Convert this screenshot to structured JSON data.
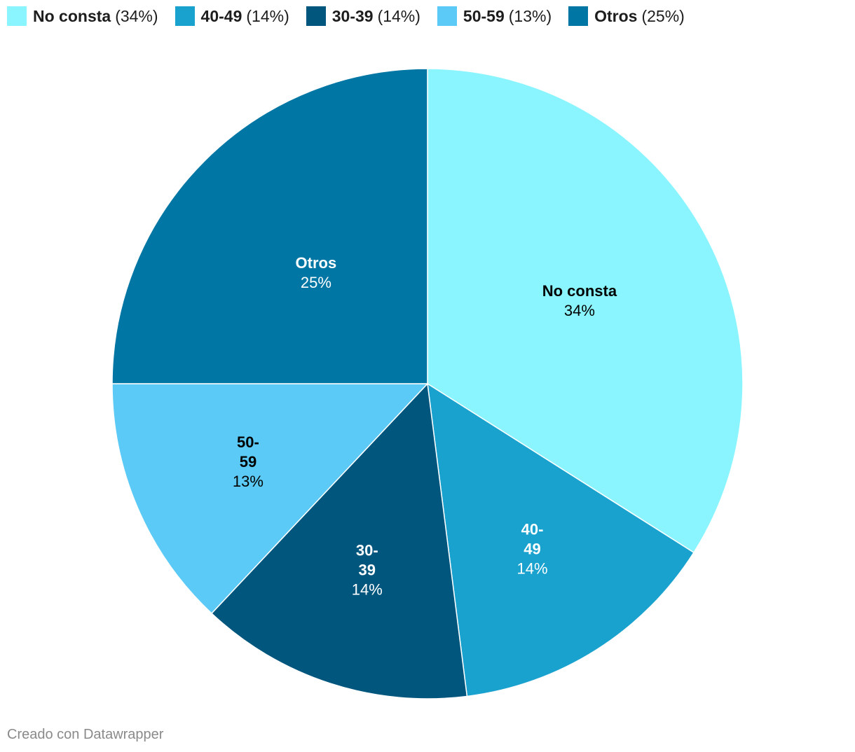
{
  "chart_data": {
    "type": "pie",
    "slices": [
      {
        "label": "No consta",
        "label_lines": [
          "No consta"
        ],
        "value": 34,
        "value_text": "34%",
        "legend_value": "(34%)",
        "color": "#8bf5ff",
        "label_color": "#000000"
      },
      {
        "label": "40-49",
        "label_lines": [
          "40-",
          "49"
        ],
        "value": 14,
        "value_text": "14%",
        "legend_value": "(14%)",
        "color": "#1aa2cf",
        "label_color": "#ffffff"
      },
      {
        "label": "30-39",
        "label_lines": [
          "30-",
          "39"
        ],
        "value": 14,
        "value_text": "14%",
        "legend_value": "(14%)",
        "color": "#00567d",
        "label_color": "#ffffff"
      },
      {
        "label": "50-59",
        "label_lines": [
          "50-",
          "59"
        ],
        "value": 13,
        "value_text": "13%",
        "legend_value": "(13%)",
        "color": "#5bcaf6",
        "label_color": "#000000"
      },
      {
        "label": "Otros",
        "label_lines": [
          "Otros"
        ],
        "value": 25,
        "value_text": "25%",
        "legend_value": "(25%)",
        "color": "#0076a4",
        "label_color": "#ffffff"
      }
    ],
    "legend_position": "top-left"
  },
  "credit": "Creado con Datawrapper"
}
